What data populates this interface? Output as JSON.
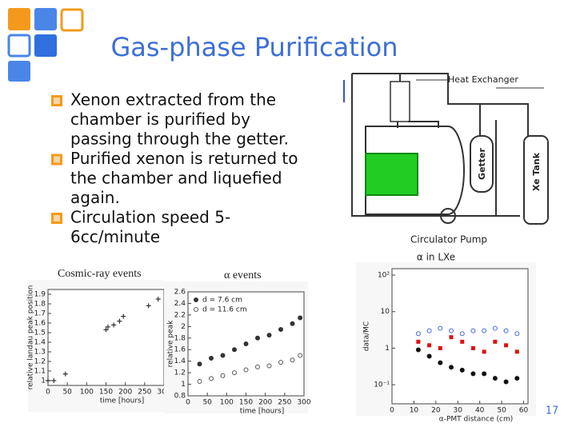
{
  "header": {
    "title": "Gas-phase Purification"
  },
  "bullets": [
    {
      "lines": [
        "Xenon extracted from the",
        "chamber is purified by",
        "passing through the getter."
      ]
    },
    {
      "lines": [
        "Purified xenon is returned to",
        "the chamber and liquefied",
        "again."
      ]
    },
    {
      "lines": [
        "Circulation speed 5-",
        "6cc/minute"
      ]
    }
  ],
  "diagram": {
    "heat_exchanger": "Heat Exchanger",
    "getter": "Getter",
    "xe_tank": "Xe Tank",
    "circulator_pump": "Circulator Pump"
  },
  "captions": {
    "cosmic": "Cosmic-ray events",
    "alpha": "α events"
  },
  "figures": [
    {
      "ylabel": "relative landau peak position",
      "xlabel": "time [hours]",
      "xlim": [
        0,
        300
      ],
      "xticks": [
        0,
        50,
        100,
        150,
        200,
        250,
        300
      ],
      "ylim": [
        0.95,
        1.95
      ],
      "yticks": [
        1,
        1.1,
        1.2,
        1.3,
        1.4,
        1.5,
        1.6,
        1.7,
        1.8,
        1.9
      ],
      "series": [
        {
          "marker": "plus",
          "color": "#333333",
          "x": [
            0,
            15,
            45,
            150,
            155,
            170,
            185,
            195,
            260,
            285
          ],
          "values": [
            1.0,
            1.0,
            1.07,
            1.53,
            1.56,
            1.58,
            1.62,
            1.67,
            1.78,
            1.85
          ]
        }
      ]
    },
    {
      "ylabel": "relative peak",
      "xlabel": "time [hours]",
      "xlim": [
        0,
        300
      ],
      "xticks": [
        0,
        50,
        100,
        150,
        200,
        250,
        300
      ],
      "ylim": [
        0.8,
        2.6
      ],
      "yticks": [
        0.8,
        1,
        1.2,
        1.4,
        1.6,
        1.8,
        2,
        2.2,
        2.4,
        2.6
      ],
      "series": [
        {
          "name": "d = 7.6 cm",
          "marker": "circle",
          "color": "#333333",
          "x": [
            30,
            60,
            90,
            120,
            150,
            180,
            210,
            240,
            270,
            290
          ],
          "values": [
            1.35,
            1.45,
            1.5,
            1.6,
            1.7,
            1.8,
            1.85,
            1.95,
            2.05,
            2.15
          ]
        },
        {
          "name": "d = 11.6 cm",
          "marker": "open-circle",
          "color": "#555555",
          "x": [
            30,
            60,
            90,
            120,
            150,
            180,
            210,
            240,
            270,
            290
          ],
          "values": [
            1.05,
            1.1,
            1.15,
            1.2,
            1.25,
            1.3,
            1.32,
            1.38,
            1.42,
            1.5
          ]
        }
      ]
    },
    {
      "title": "α in LXe",
      "ylabel": "data/MC",
      "xlabel": "α-PMT distance (cm)",
      "log": true,
      "xlim": [
        0,
        62
      ],
      "xticks": [
        0,
        10,
        20,
        30,
        40,
        50,
        60
      ],
      "ylim": [
        0.03,
        150
      ],
      "yticks": [
        {
          "value": 100,
          "label": "10²"
        },
        10,
        1,
        {
          "value": 0.1,
          "label": "10⁻¹"
        }
      ],
      "series": [
        {
          "marker": "square",
          "color": "#dd1111",
          "x": [
            12,
            17,
            22,
            27,
            32,
            37,
            42,
            47,
            52,
            57
          ],
          "values": [
            1.5,
            1.2,
            1.0,
            2.0,
            1.5,
            1.0,
            0.8,
            1.5,
            1.2,
            0.8
          ]
        },
        {
          "marker": "open-circle",
          "color": "#4466dd",
          "x": [
            12,
            17,
            22,
            27,
            32,
            37,
            42,
            47,
            52,
            57
          ],
          "values": [
            2.5,
            3,
            3.5,
            3,
            2.5,
            3,
            3,
            3.5,
            3,
            2.5
          ]
        },
        {
          "marker": "circle",
          "color": "#111111",
          "x": [
            12,
            17,
            22,
            27,
            32,
            37,
            42,
            47,
            52,
            57
          ],
          "values": [
            0.9,
            0.6,
            0.4,
            0.3,
            0.25,
            0.2,
            0.2,
            0.15,
            0.12,
            0.15
          ]
        }
      ]
    }
  ],
  "footer": {
    "page": "17"
  }
}
